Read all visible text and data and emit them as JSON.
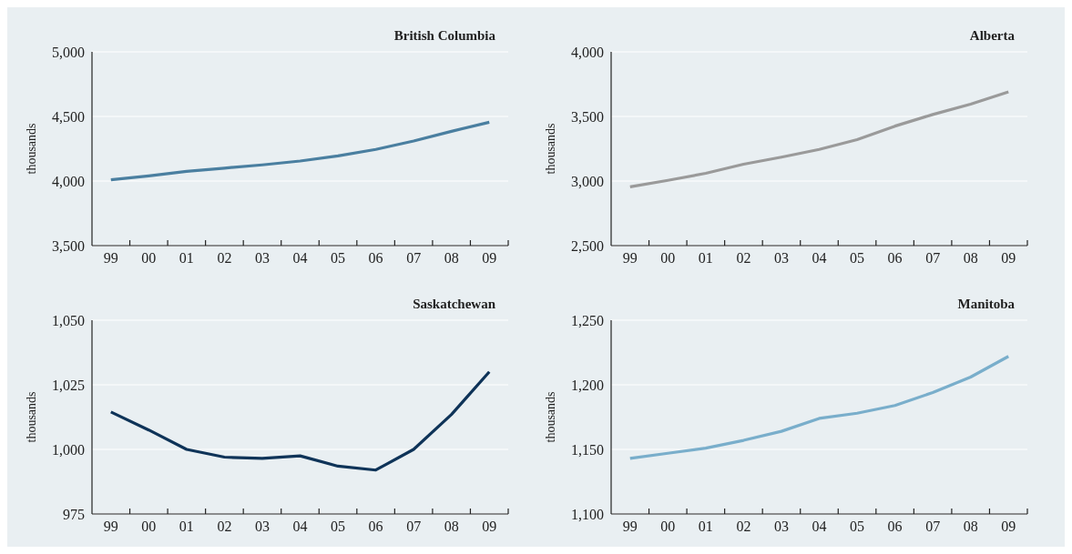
{
  "chart_data": [
    {
      "type": "line",
      "title": "British Columbia",
      "ylabel": "thousands",
      "categories": [
        "99",
        "00",
        "01",
        "02",
        "03",
        "04",
        "05",
        "06",
        "07",
        "08",
        "09"
      ],
      "series": [
        {
          "color": "#4a7fa0",
          "values": [
            4010,
            4040,
            4075,
            4100,
            4125,
            4155,
            4195,
            4245,
            4310,
            4385,
            4455
          ]
        }
      ],
      "ylim": [
        3500,
        5000
      ],
      "yticks": [
        {
          "value": 3500,
          "label": "3,500"
        },
        {
          "value": 4000,
          "label": "4,000"
        },
        {
          "value": 4500,
          "label": "4,500"
        },
        {
          "value": 5000,
          "label": "5,000"
        }
      ],
      "grid": "y",
      "marker": "none",
      "line_style": "solid"
    },
    {
      "type": "line",
      "title": "Alberta",
      "ylabel": "thousands",
      "categories": [
        "99",
        "00",
        "01",
        "02",
        "03",
        "04",
        "05",
        "06",
        "07",
        "08",
        "09"
      ],
      "series": [
        {
          "color": "#9a9a9a",
          "values": [
            2955,
            3005,
            3060,
            3130,
            3185,
            3245,
            3320,
            3425,
            3515,
            3595,
            3690
          ]
        }
      ],
      "ylim": [
        2500,
        4000
      ],
      "yticks": [
        {
          "value": 2500,
          "label": "2,500"
        },
        {
          "value": 3000,
          "label": "3,000"
        },
        {
          "value": 3500,
          "label": "3,500"
        },
        {
          "value": 4000,
          "label": "4,000"
        }
      ],
      "grid": "y",
      "marker": "none",
      "line_style": "solid"
    },
    {
      "type": "line",
      "title": "Saskatchewan",
      "ylabel": "thousands",
      "categories": [
        "99",
        "00",
        "01",
        "02",
        "03",
        "04",
        "05",
        "06",
        "07",
        "08",
        "09"
      ],
      "series": [
        {
          "color": "#0e3358",
          "values": [
            1014.5,
            1007.5,
            1000,
            997,
            996.5,
            997.5,
            993.5,
            992,
            1000,
            1013.5,
            1030
          ]
        }
      ],
      "ylim": [
        975,
        1050
      ],
      "yticks": [
        975,
        {
          "value": 1000,
          "label": "1,000"
        },
        {
          "value": 1025,
          "label": "1,025"
        },
        {
          "value": 1050,
          "label": "1,050"
        }
      ],
      "grid": "y",
      "marker": "none",
      "line_style": "solid"
    },
    {
      "type": "line",
      "title": "Manitoba",
      "ylabel": "thousands",
      "categories": [
        "99",
        "00",
        "01",
        "02",
        "03",
        "04",
        "05",
        "06",
        "07",
        "08",
        "09"
      ],
      "series": [
        {
          "color": "#79aecb",
          "values": [
            1143,
            1147,
            1151,
            1157,
            1164,
            1174,
            1178,
            1184,
            1194,
            1206,
            1222
          ]
        }
      ],
      "ylim": [
        1100,
        1250
      ],
      "yticks": [
        {
          "value": 1100,
          "label": "1,100"
        },
        {
          "value": 1150,
          "label": "1,150"
        },
        {
          "value": 1200,
          "label": "1,200"
        },
        {
          "value": 1250,
          "label": "1,250"
        }
      ],
      "grid": "y",
      "marker": "none",
      "line_style": "solid"
    }
  ]
}
